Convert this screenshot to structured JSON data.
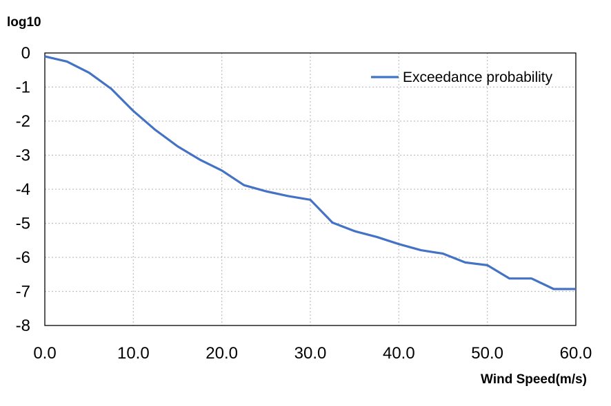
{
  "chart_data": {
    "type": "line",
    "title": "",
    "xlabel": "Wind Speed(m/s)",
    "ylabel": "log10",
    "xlim": [
      0,
      60
    ],
    "ylim": [
      -8,
      0
    ],
    "x_ticks": [
      0,
      10,
      20,
      30,
      40,
      50,
      60
    ],
    "x_tick_labels": [
      "0.0",
      "10.0",
      "20.0",
      "30.0",
      "40.0",
      "50.0",
      "60.0"
    ],
    "y_ticks": [
      0,
      -1,
      -2,
      -3,
      -4,
      -5,
      -6,
      -7,
      -8
    ],
    "y_tick_labels": [
      "0",
      "-1",
      "-2",
      "-3",
      "-4",
      "-5",
      "-6",
      "-7",
      "-8"
    ],
    "grid": true,
    "legend_position": "top-right",
    "series": [
      {
        "name": "Exceedance probability",
        "color": "#4472c4",
        "x": [
          0,
          2.5,
          5,
          7.5,
          10,
          12.5,
          15,
          17.5,
          20,
          22.5,
          25,
          27.5,
          30,
          32.5,
          35,
          37.5,
          40,
          42.5,
          45,
          47.5,
          50,
          52.5,
          55,
          57.5,
          60
        ],
        "values": [
          -0.1,
          -0.25,
          -0.58,
          -1.05,
          -1.7,
          -2.26,
          -2.74,
          -3.13,
          -3.45,
          -3.88,
          -4.06,
          -4.2,
          -4.31,
          -4.98,
          -5.23,
          -5.4,
          -5.61,
          -5.79,
          -5.89,
          -6.15,
          -6.23,
          -6.62,
          -6.62,
          -6.93,
          -6.93
        ]
      }
    ]
  }
}
